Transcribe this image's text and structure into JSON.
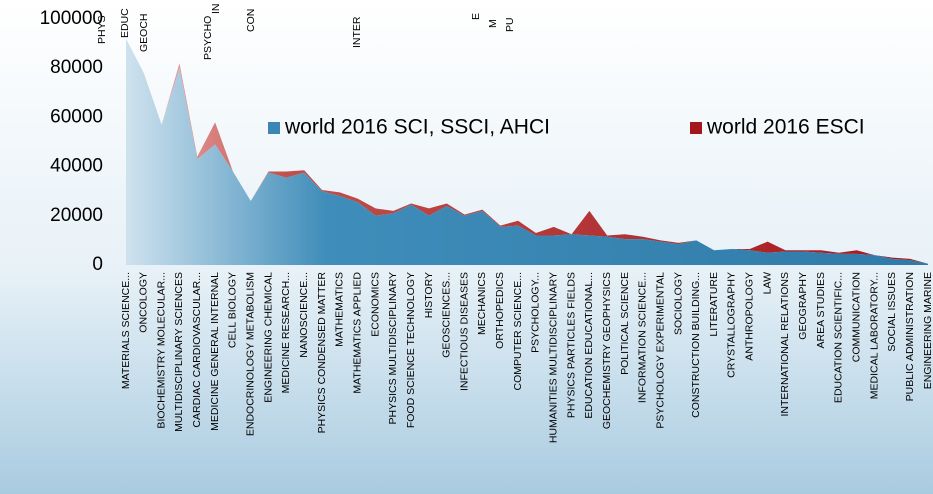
{
  "chart_data": {
    "type": "stacked_area",
    "categories": [
      "MATERIALS SCIENCE...",
      "ONCOLOGY",
      "BIOCHEMISTRY MOLECULAR...",
      "MULTIDISCIPLINARY SCIENCES",
      "CARDIAC CARDIOVASCULAR...",
      "MEDICINE GENERAL INTERNAL",
      "CELL BIOLOGY",
      "ENDOCRINOLOGY METABOLISM",
      "ENGINEERING CHEMICAL",
      "MEDICINE RESEARCH...",
      "NANOSCIENCE...",
      "PHYSICS CONDENSED MATTER",
      "MATHEMATICS",
      "MATHEMATICS APPLIED",
      "ECONOMICS",
      "PHYSICS MULTIDISCIPLINARY",
      "FOOD SCIENCE TECHNOLOGY",
      "HISTORY",
      "GEOSCIENCES...",
      "INFECTIOUS DISEASES",
      "MECHANICS",
      "ORTHOPEDICS",
      "COMPUTER SCIENCE...",
      "PSYCHOLOGY...",
      "HUMANITIES MULTIDISCIPLINARY",
      "PHYSICS PARTICLES FIELDS",
      "EDUCATION EDUCATIONAL...",
      "GEOCHEMISTRY GEOPHYSICS",
      "POLITICAL SCIENCE",
      "INFORMATION SCIENCE...",
      "PSYCHOLOGY EXPERIMENTAL",
      "SOCIOLOGY",
      "CONSTRUCTION BUILDING...",
      "LITERATURE",
      "CRYSTALLOGRAPHY",
      "ANTHROPOLOGY",
      "LAW",
      "INTERNATIONAL RELATIONS",
      "GEOGRAPHY",
      "AREA STUDIES",
      "EDUCATION SCIENTIFIC...",
      "COMMUNICATION",
      "MEDICAL LABORATORY...",
      "SOCIAL ISSUES",
      "PUBLIC ADMINISTRATION",
      "ENGINEERING MARINE"
    ],
    "series": [
      {
        "name": "world 2016 SCI, SSCI, AHCI",
        "color": "#3a86b4",
        "values": [
          92000,
          78000,
          57000,
          80000,
          43000,
          49000,
          38000,
          26000,
          37500,
          35500,
          37500,
          30000,
          28000,
          25500,
          20000,
          21000,
          24500,
          20000,
          24000,
          20000,
          22000,
          15500,
          16000,
          12000,
          12000,
          12500,
          12000,
          11500,
          10500,
          10500,
          9500,
          8500,
          10000,
          6000,
          6500,
          6000,
          5000,
          5500,
          5500,
          5000,
          4500,
          4500,
          4000,
          2500,
          2000,
          500
        ]
      },
      {
        "name": "world 2016 ESCI",
        "color": "#a5161c",
        "values": [
          0,
          0,
          0,
          2000,
          1000,
          9000,
          0,
          0,
          500,
          2500,
          1000,
          500,
          1500,
          1500,
          3000,
          1000,
          500,
          3000,
          1000,
          500,
          500,
          500,
          2000,
          1000,
          3500,
          0,
          10000,
          500,
          2000,
          1000,
          500,
          500,
          0,
          0,
          0,
          500,
          4500,
          500,
          500,
          1000,
          500,
          1500,
          0,
          500,
          500,
          0
        ]
      }
    ],
    "top_labels": [
      "PHYS",
      "EDUC",
      "GEOCH",
      "IN",
      "PSYCHO",
      "CON",
      "INTER",
      "E",
      "M",
      "PU"
    ],
    "ylim": [
      0,
      100000
    ],
    "yticks": [
      0,
      20000,
      40000,
      60000,
      80000,
      100000
    ],
    "legend": "center"
  }
}
